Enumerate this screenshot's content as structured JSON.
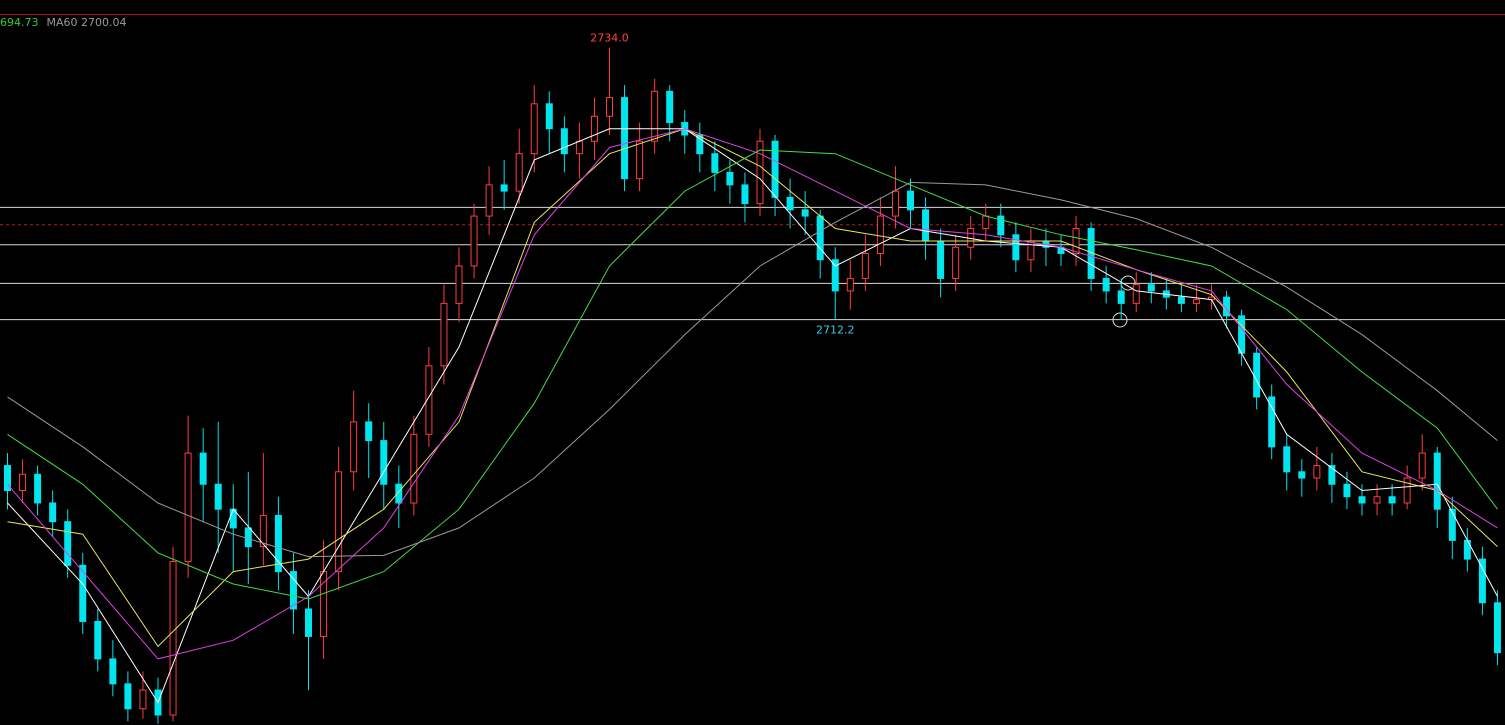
{
  "chart_data": {
    "type": "candlestick",
    "ylim": [
      2679.7,
      2736.7
    ],
    "up_color": "#ff3c3c",
    "down_color": "#00e5ee",
    "open": [
      2700.5,
      2698.5,
      2699.8,
      2697.5,
      2696.0,
      2692.5,
      2688.0,
      2685.0,
      2683.0,
      2681.0,
      2682.5,
      2680.5,
      2692.8,
      2701.5,
      2699.0,
      2697.0,
      2695.5,
      2694.0,
      2696.5,
      2692.0,
      2689.0,
      2686.8,
      2692.0,
      2700.0,
      2704.0,
      2702.5,
      2699.0,
      2697.5,
      2703.0,
      2708.5,
      2713.5,
      2716.5,
      2720.5,
      2723.0,
      2722.5,
      2725.5,
      2729.5,
      2727.5,
      2725.5,
      2726.5,
      2728.5,
      2730.0,
      2723.5,
      2726.5,
      2730.5,
      2728.0,
      2727.0,
      2725.5,
      2724.0,
      2723.0,
      2721.5,
      2726.5,
      2722.0,
      2721.0,
      2720.5,
      2717.0,
      2714.5,
      2715.5,
      2717.5,
      2720.5,
      2722.5,
      2721.0,
      2718.5,
      2715.5,
      2718.0,
      2719.5,
      2720.5,
      2719.0,
      2717.0,
      2718.5,
      2718.0,
      2717.5,
      2719.5,
      2715.5,
      2714.5,
      2713.5,
      2715.0,
      2714.5,
      2714.0,
      2713.5,
      2713.8,
      2714.0,
      2712.5,
      2709.5,
      2706.0,
      2702.0,
      2700.0,
      2699.5,
      2700.5,
      2699.0,
      2698.0,
      2697.5,
      2698.0,
      2697.5,
      2699.5,
      2701.5,
      2697.0,
      2694.5,
      2693.0,
      2689.5
    ],
    "high": [
      2701.5,
      2701.0,
      2700.5,
      2698.5,
      2697.0,
      2693.5,
      2689.0,
      2686.5,
      2684.0,
      2684.0,
      2683.5,
      2694.0,
      2704.5,
      2703.5,
      2704.0,
      2699.0,
      2700.0,
      2701.5,
      2698.0,
      2693.5,
      2690.5,
      2694.5,
      2702.0,
      2706.5,
      2705.5,
      2704.0,
      2700.5,
      2704.5,
      2710.0,
      2715.0,
      2718.0,
      2721.5,
      2724.5,
      2725.0,
      2727.5,
      2731.0,
      2730.5,
      2728.5,
      2728.0,
      2730.0,
      2734.0,
      2731.0,
      2728.0,
      2731.5,
      2731.0,
      2729.0,
      2728.0,
      2726.5,
      2725.0,
      2724.0,
      2727.5,
      2727.0,
      2723.5,
      2722.5,
      2721.0,
      2718.0,
      2717.0,
      2719.0,
      2722.0,
      2724.5,
      2723.5,
      2722.0,
      2719.5,
      2719.0,
      2720.5,
      2721.5,
      2721.5,
      2720.0,
      2719.5,
      2719.5,
      2719.0,
      2720.5,
      2720.0,
      2716.5,
      2715.5,
      2716.0,
      2716.0,
      2715.5,
      2715.0,
      2715.0,
      2715.0,
      2714.5,
      2713.0,
      2710.0,
      2707.0,
      2703.0,
      2701.0,
      2702.0,
      2701.5,
      2700.0,
      2699.0,
      2699.0,
      2699.0,
      2700.5,
      2703.0,
      2702.0,
      2698.0,
      2695.5,
      2694.0,
      2690.5
    ],
    "low": [
      2697.0,
      2697.5,
      2696.5,
      2694.8,
      2691.5,
      2687.0,
      2684.0,
      2682.0,
      2680.0,
      2680.2,
      2679.8,
      2680.0,
      2691.5,
      2696.0,
      2693.5,
      2692.0,
      2691.0,
      2692.5,
      2690.5,
      2687.0,
      2682.5,
      2685.0,
      2690.5,
      2698.5,
      2699.5,
      2697.0,
      2695.5,
      2696.5,
      2702.0,
      2707.0,
      2712.0,
      2715.5,
      2719.0,
      2721.0,
      2721.5,
      2724.0,
      2725.5,
      2724.0,
      2723.5,
      2725.0,
      2727.0,
      2722.5,
      2722.5,
      2725.5,
      2726.5,
      2725.5,
      2724.0,
      2722.5,
      2721.5,
      2720.0,
      2720.5,
      2720.5,
      2719.5,
      2719.0,
      2715.5,
      2712.2,
      2713.0,
      2714.5,
      2716.5,
      2719.5,
      2719.5,
      2717.0,
      2714.0,
      2714.5,
      2717.0,
      2718.5,
      2718.0,
      2716.0,
      2716.0,
      2716.5,
      2716.5,
      2716.5,
      2714.5,
      2713.5,
      2712.2,
      2712.8,
      2713.5,
      2713.0,
      2712.8,
      2712.8,
      2713.0,
      2711.5,
      2708.5,
      2705.0,
      2701.0,
      2698.5,
      2698.0,
      2698.5,
      2697.5,
      2697.0,
      2696.5,
      2696.5,
      2696.5,
      2697.0,
      2698.5,
      2695.5,
      2693.0,
      2692.0,
      2688.5,
      2684.5
    ],
    "close": [
      2698.5,
      2699.8,
      2697.5,
      2696.0,
      2692.5,
      2688.0,
      2685.0,
      2683.0,
      2681.0,
      2682.5,
      2680.5,
      2692.8,
      2701.5,
      2699.0,
      2697.0,
      2695.5,
      2694.0,
      2696.5,
      2692.0,
      2689.0,
      2686.8,
      2692.0,
      2700.0,
      2704.0,
      2702.5,
      2699.0,
      2697.5,
      2703.0,
      2708.5,
      2713.5,
      2716.5,
      2720.5,
      2723.0,
      2722.5,
      2725.5,
      2729.5,
      2727.5,
      2725.5,
      2726.5,
      2728.5,
      2730.0,
      2723.5,
      2726.5,
      2730.5,
      2728.0,
      2727.0,
      2725.5,
      2724.0,
      2723.0,
      2721.5,
      2726.5,
      2722.0,
      2721.0,
      2720.5,
      2717.0,
      2714.5,
      2715.5,
      2717.5,
      2720.5,
      2722.5,
      2721.0,
      2718.5,
      2715.5,
      2718.0,
      2719.5,
      2720.5,
      2719.0,
      2717.0,
      2718.5,
      2718.0,
      2717.5,
      2719.5,
      2715.5,
      2714.5,
      2713.5,
      2715.0,
      2714.5,
      2714.0,
      2713.5,
      2713.8,
      2714.0,
      2712.5,
      2709.5,
      2706.0,
      2702.0,
      2700.0,
      2699.5,
      2700.5,
      2699.0,
      2698.0,
      2697.5,
      2698.0,
      2697.5,
      2699.5,
      2701.5,
      2697.0,
      2694.5,
      2693.0,
      2689.5,
      2685.5
    ],
    "ma_lines": [
      {
        "color": "#ffffff",
        "x": [
          0,
          5,
          10,
          15,
          20,
          25,
          30,
          35,
          40,
          45,
          50,
          55,
          60,
          65,
          70,
          75,
          80,
          85,
          90,
          95,
          99
        ],
        "values": [
          2697.5,
          2691,
          2681.5,
          2697,
          2690,
          2700,
          2710,
          2725,
          2727.5,
          2727.5,
          2723.5,
          2716.5,
          2719.5,
          2718.5,
          2718,
          2714.5,
          2713.8,
          2703,
          2698.5,
          2699,
          2690
        ]
      },
      {
        "color": "#e6e65c",
        "x": [
          0,
          5,
          10,
          15,
          20,
          25,
          30,
          35,
          40,
          45,
          50,
          55,
          60,
          65,
          70,
          75,
          80,
          85,
          90,
          95,
          99
        ],
        "values": [
          2696,
          2695,
          2686,
          2692,
          2693,
          2697,
          2704,
          2720,
          2725.5,
          2727.5,
          2724.5,
          2719.5,
          2718.5,
          2718.5,
          2718.5,
          2716.2,
          2714.2,
          2708,
          2700,
          2698.5,
          2694
        ]
      },
      {
        "color": "#e040e0",
        "x": [
          0,
          5,
          10,
          15,
          20,
          25,
          30,
          35,
          40,
          45,
          50,
          55,
          60,
          65,
          70,
          75,
          80,
          85,
          90,
          95,
          99
        ],
        "values": [
          2699,
          2692,
          2685,
          2686.5,
          2690,
          2695.5,
          2704.5,
          2719,
          2726,
          2727.5,
          2725.5,
          2722.5,
          2719.5,
          2719,
          2718,
          2716.2,
          2714.5,
          2707,
          2701.5,
          2698.5,
          2695.5
        ]
      },
      {
        "color": "#44dd44",
        "x": [
          0,
          5,
          10,
          15,
          20,
          25,
          30,
          35,
          40,
          45,
          50,
          55,
          60,
          65,
          70,
          75,
          80,
          85,
          90,
          95,
          99
        ],
        "values": [
          2703,
          2699,
          2693.5,
          2691,
          2689.8,
          2692,
          2697,
          2705.5,
          2716.5,
          2722.5,
          2725.8,
          2725.5,
          2723,
          2720.5,
          2719,
          2717.8,
          2716.5,
          2713,
          2708,
          2703.5,
          2697
        ]
      },
      {
        "color": "#9a9a9a",
        "x": [
          0,
          5,
          10,
          15,
          20,
          25,
          30,
          35,
          40,
          45,
          50,
          55,
          60,
          65,
          70,
          75,
          80,
          85,
          90,
          95,
          99
        ],
        "values": [
          2706,
          2702,
          2697.5,
          2695,
          2693.2,
          2693.3,
          2695.5,
          2699.5,
          2705,
          2711,
          2716.5,
          2720,
          2723.2,
          2723,
          2721.8,
          2720.3,
          2718,
          2714.8,
          2711,
          2706.5,
          2702.5
        ]
      }
    ],
    "hlines": [
      2721.2,
      2718.2,
      2715.1,
      2712.2
    ],
    "dashed_line": 2719.8,
    "annotations": [
      {
        "text": "2734.0",
        "index": 40,
        "color": "#ff4444"
      },
      {
        "text": "2712.2",
        "index": 55,
        "color": "#33ccee"
      }
    ],
    "legend": [
      {
        "text": "694.73",
        "color": "#33cc33"
      },
      {
        "text": "MA60 2700.04",
        "color": "#9a9a9a"
      }
    ]
  }
}
